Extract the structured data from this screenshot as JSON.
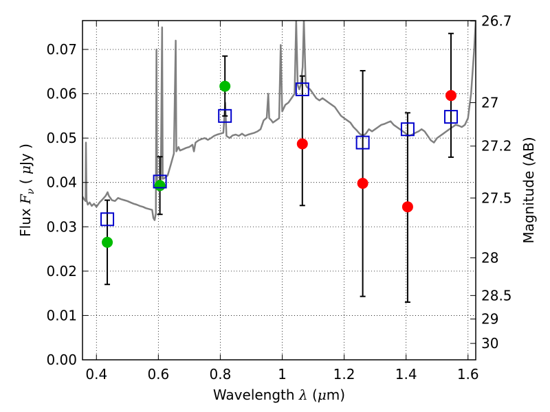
{
  "chart_data": {
    "type": "scatter",
    "xlabel": {
      "prefix": "Wavelength  ",
      "symbol": "λ",
      "unit": " (",
      "unit_symbol": "μ",
      "unit_suffix": "m)"
    },
    "ylabel": {
      "prefix": "Flux  ",
      "symbol": "F",
      "subscript": "ν",
      "unit": "  ( ",
      "unit_symbol": "μ",
      "unit_suffix": "Jy )"
    },
    "y2label": "Magnitude (AB)",
    "xlim": [
      0.355,
      1.625
    ],
    "ylim": [
      0.0,
      0.0765
    ],
    "x_ticks": [
      0.4,
      0.6,
      0.8,
      1.0,
      1.2,
      1.4,
      1.6
    ],
    "x_tick_labels": [
      "0.4",
      "0.6",
      "0.8",
      "1",
      "1.2",
      "1.4",
      "1.6"
    ],
    "y_ticks": [
      0.0,
      0.01,
      0.02,
      0.03,
      0.04,
      0.05,
      0.06,
      0.07
    ],
    "y_tick_labels": [
      "0.00",
      "0.01",
      "0.02",
      "0.03",
      "0.04",
      "0.05",
      "0.06",
      "0.07"
    ],
    "y2_ticks": [
      {
        "label": "26.7",
        "flux": 0.0764
      },
      {
        "label": "27",
        "flux": 0.058
      },
      {
        "label": "27.2",
        "flux": 0.0482
      },
      {
        "label": "27.5",
        "flux": 0.0365
      },
      {
        "label": "28",
        "flux": 0.023
      },
      {
        "label": "28.5",
        "flux": 0.0145
      },
      {
        "label": "29",
        "flux": 0.0092
      },
      {
        "label": "30",
        "flux": 0.0037
      }
    ],
    "grid": true,
    "colors": {
      "spectrum": "#808080",
      "green": "#00bb00",
      "red": "#ff0000",
      "model_box": "#0000cc",
      "error": "#000000"
    },
    "observed_points": [
      {
        "x": 0.435,
        "y": 0.0265,
        "err_low": 0.017,
        "err_high": 0.036,
        "color": "green"
      },
      {
        "x": 0.605,
        "y": 0.0393,
        "err_low": 0.0328,
        "err_high": 0.0458,
        "color": "green"
      },
      {
        "x": 0.815,
        "y": 0.0617,
        "err_low": 0.055,
        "err_high": 0.0685,
        "color": "green"
      },
      {
        "x": 1.065,
        "y": 0.0487,
        "err_low": 0.0348,
        "err_high": 0.064,
        "color": "red"
      },
      {
        "x": 1.26,
        "y": 0.0398,
        "err_low": 0.0143,
        "err_high": 0.0652,
        "color": "red"
      },
      {
        "x": 1.405,
        "y": 0.0345,
        "err_low": 0.013,
        "err_high": 0.0557,
        "color": "red"
      },
      {
        "x": 1.545,
        "y": 0.0596,
        "err_low": 0.0457,
        "err_high": 0.0736,
        "color": "red"
      }
    ],
    "model_points": [
      {
        "x": 0.435,
        "y": 0.0317
      },
      {
        "x": 0.605,
        "y": 0.0402
      },
      {
        "x": 0.815,
        "y": 0.055
      },
      {
        "x": 1.065,
        "y": 0.061
      },
      {
        "x": 1.26,
        "y": 0.049
      },
      {
        "x": 1.405,
        "y": 0.052
      },
      {
        "x": 1.545,
        "y": 0.0548
      }
    ],
    "spectrum": [
      [
        0.355,
        0.0368
      ],
      [
        0.36,
        0.0362
      ],
      [
        0.365,
        0.0358
      ],
      [
        0.366,
        0.049
      ],
      [
        0.368,
        0.036
      ],
      [
        0.372,
        0.035
      ],
      [
        0.378,
        0.0355
      ],
      [
        0.385,
        0.0347
      ],
      [
        0.392,
        0.0352
      ],
      [
        0.4,
        0.0345
      ],
      [
        0.41,
        0.0355
      ],
      [
        0.42,
        0.0362
      ],
      [
        0.43,
        0.037
      ],
      [
        0.436,
        0.0378
      ],
      [
        0.44,
        0.037
      ],
      [
        0.45,
        0.036
      ],
      [
        0.46,
        0.0358
      ],
      [
        0.47,
        0.0365
      ],
      [
        0.48,
        0.0362
      ],
      [
        0.49,
        0.036
      ],
      [
        0.5,
        0.0358
      ],
      [
        0.51,
        0.0355
      ],
      [
        0.52,
        0.0352
      ],
      [
        0.53,
        0.035
      ],
      [
        0.54,
        0.0347
      ],
      [
        0.55,
        0.0345
      ],
      [
        0.56,
        0.0342
      ],
      [
        0.57,
        0.034
      ],
      [
        0.58,
        0.0338
      ],
      [
        0.584,
        0.032
      ],
      [
        0.588,
        0.0315
      ],
      [
        0.592,
        0.033
      ],
      [
        0.594,
        0.07
      ],
      [
        0.596,
        0.039
      ],
      [
        0.6,
        0.04
      ],
      [
        0.604,
        0.0403
      ],
      [
        0.608,
        0.0406
      ],
      [
        0.612,
        0.075
      ],
      [
        0.614,
        0.0408
      ],
      [
        0.62,
        0.041
      ],
      [
        0.63,
        0.0416
      ],
      [
        0.64,
        0.044
      ],
      [
        0.65,
        0.0465
      ],
      [
        0.656,
        0.072
      ],
      [
        0.658,
        0.047
      ],
      [
        0.665,
        0.048
      ],
      [
        0.67,
        0.0472
      ],
      [
        0.68,
        0.0475
      ],
      [
        0.69,
        0.0478
      ],
      [
        0.7,
        0.048
      ],
      [
        0.71,
        0.0485
      ],
      [
        0.715,
        0.047
      ],
      [
        0.72,
        0.049
      ],
      [
        0.73,
        0.0495
      ],
      [
        0.74,
        0.0498
      ],
      [
        0.75,
        0.05
      ],
      [
        0.76,
        0.0496
      ],
      [
        0.77,
        0.05
      ],
      [
        0.78,
        0.0505
      ],
      [
        0.79,
        0.0508
      ],
      [
        0.8,
        0.051
      ],
      [
        0.81,
        0.0512
      ],
      [
        0.816,
        0.058
      ],
      [
        0.82,
        0.0505
      ],
      [
        0.83,
        0.05
      ],
      [
        0.84,
        0.0506
      ],
      [
        0.85,
        0.0508
      ],
      [
        0.86,
        0.0505
      ],
      [
        0.87,
        0.051
      ],
      [
        0.88,
        0.0505
      ],
      [
        0.89,
        0.0508
      ],
      [
        0.9,
        0.051
      ],
      [
        0.91,
        0.0512
      ],
      [
        0.92,
        0.0515
      ],
      [
        0.93,
        0.052
      ],
      [
        0.94,
        0.054
      ],
      [
        0.95,
        0.0546
      ],
      [
        0.955,
        0.06
      ],
      [
        0.958,
        0.0545
      ],
      [
        0.965,
        0.054
      ],
      [
        0.97,
        0.0535
      ],
      [
        0.98,
        0.054
      ],
      [
        0.99,
        0.0545
      ],
      [
        0.995,
        0.071
      ],
      [
        1.0,
        0.056
      ],
      [
        1.01,
        0.0575
      ],
      [
        1.02,
        0.058
      ],
      [
        1.03,
        0.059
      ],
      [
        1.04,
        0.06
      ],
      [
        1.045,
        0.0765
      ],
      [
        1.05,
        0.062
      ],
      [
        1.055,
        0.061
      ],
      [
        1.06,
        0.062
      ],
      [
        1.066,
        0.066
      ],
      [
        1.07,
        0.0765
      ],
      [
        1.076,
        0.062
      ],
      [
        1.08,
        0.0615
      ],
      [
        1.09,
        0.061
      ],
      [
        1.1,
        0.06
      ],
      [
        1.11,
        0.059
      ],
      [
        1.12,
        0.0585
      ],
      [
        1.13,
        0.059
      ],
      [
        1.14,
        0.0585
      ],
      [
        1.15,
        0.058
      ],
      [
        1.16,
        0.0575
      ],
      [
        1.17,
        0.057
      ],
      [
        1.18,
        0.056
      ],
      [
        1.19,
        0.055
      ],
      [
        1.2,
        0.0545
      ],
      [
        1.21,
        0.054
      ],
      [
        1.22,
        0.0535
      ],
      [
        1.23,
        0.0525
      ],
      [
        1.24,
        0.0518
      ],
      [
        1.25,
        0.051
      ],
      [
        1.26,
        0.0505
      ],
      [
        1.27,
        0.051
      ],
      [
        1.28,
        0.052
      ],
      [
        1.29,
        0.0515
      ],
      [
        1.3,
        0.052
      ],
      [
        1.31,
        0.0525
      ],
      [
        1.32,
        0.053
      ],
      [
        1.33,
        0.0532
      ],
      [
        1.34,
        0.0535
      ],
      [
        1.35,
        0.0538
      ],
      [
        1.36,
        0.053
      ],
      [
        1.37,
        0.0525
      ],
      [
        1.38,
        0.052
      ],
      [
        1.39,
        0.0515
      ],
      [
        1.4,
        0.051
      ],
      [
        1.41,
        0.0505
      ],
      [
        1.42,
        0.0508
      ],
      [
        1.43,
        0.0512
      ],
      [
        1.44,
        0.0515
      ],
      [
        1.45,
        0.052
      ],
      [
        1.46,
        0.0515
      ],
      [
        1.47,
        0.0505
      ],
      [
        1.48,
        0.0495
      ],
      [
        1.49,
        0.049
      ],
      [
        1.5,
        0.05
      ],
      [
        1.51,
        0.0505
      ],
      [
        1.52,
        0.051
      ],
      [
        1.53,
        0.0515
      ],
      [
        1.54,
        0.052
      ],
      [
        1.55,
        0.0525
      ],
      [
        1.56,
        0.053
      ],
      [
        1.57,
        0.0528
      ],
      [
        1.58,
        0.0525
      ],
      [
        1.59,
        0.053
      ],
      [
        1.6,
        0.0545
      ],
      [
        1.61,
        0.06
      ],
      [
        1.62,
        0.07
      ],
      [
        1.625,
        0.0765
      ]
    ]
  }
}
